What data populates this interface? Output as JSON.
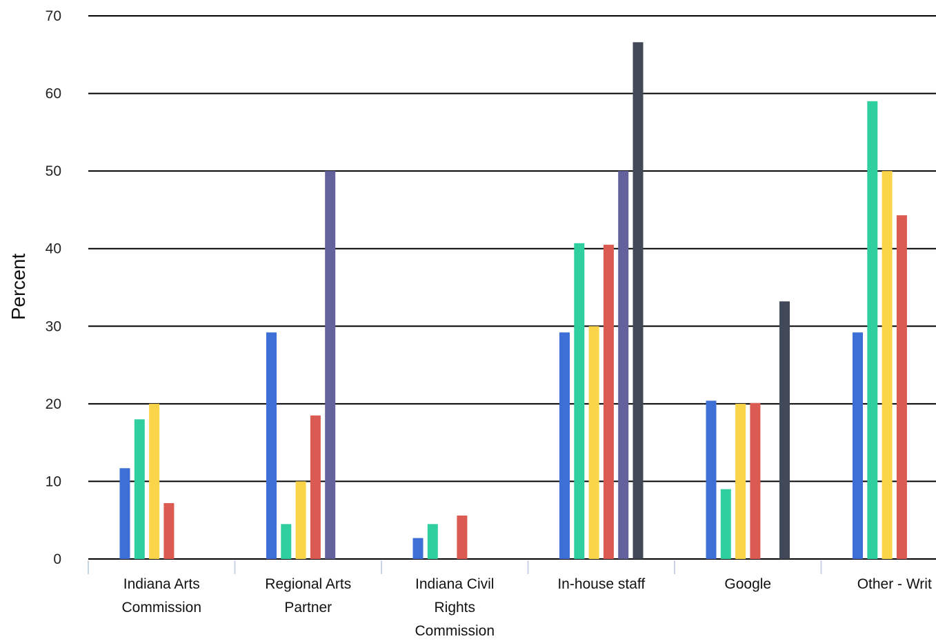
{
  "chart_data": {
    "type": "bar",
    "title": "",
    "xlabel": "",
    "ylabel": "Percent",
    "ylim": [
      0,
      70
    ],
    "yticks": [
      0,
      10,
      20,
      30,
      40,
      50,
      60,
      70
    ],
    "grid": true,
    "legend": "none",
    "categories": [
      "Indiana Arts Commission",
      "Regional Arts Partner",
      "Indiana Civil Rights Commission",
      "In-house staff",
      "Google",
      "Other - Writ"
    ],
    "category_lines": [
      [
        "Indiana Arts",
        "Commission"
      ],
      [
        "Regional Arts",
        "Partner"
      ],
      [
        "Indiana Civil",
        "Rights",
        "Commission"
      ],
      [
        "In-house staff"
      ],
      [
        "Google"
      ],
      [
        "Other - Writ"
      ]
    ],
    "series": [
      {
        "color": "#3d6fd6",
        "values": [
          11.7,
          29.2,
          2.7,
          29.2,
          20.4,
          29.2
        ]
      },
      {
        "color": "#2fcfa0",
        "values": [
          18.0,
          4.5,
          4.5,
          40.7,
          9.0,
          59.0
        ]
      },
      {
        "color": "#fad449",
        "values": [
          20.0,
          10.0,
          0,
          30.0,
          20.0,
          50.0
        ]
      },
      {
        "color": "#db5a52",
        "values": [
          7.2,
          18.5,
          5.6,
          40.5,
          20.1,
          44.3
        ]
      },
      {
        "color": "#64629c",
        "values": [
          0,
          50.0,
          0,
          50.0,
          0,
          0
        ]
      },
      {
        "color": "#414858",
        "values": [
          0,
          0,
          0,
          66.6,
          33.2,
          0
        ]
      }
    ]
  }
}
